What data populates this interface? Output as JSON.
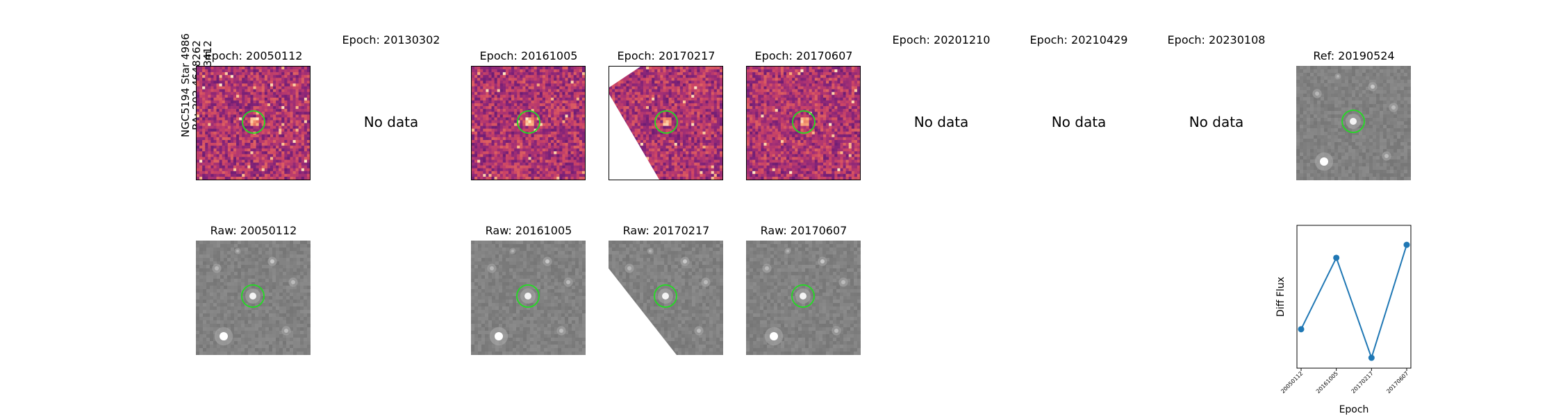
{
  "star_label": {
    "line1": "NGC5194 Star 4986",
    "line2": "RA: 202.4648262",
    "line3": "Dec: 47.1613412"
  },
  "colors": {
    "marker": "#22dd22",
    "series": "#1f77b4"
  },
  "no_data_text": "No data",
  "top_row": [
    {
      "title": "Epoch: 20050112",
      "has_data": true
    },
    {
      "title": "Epoch: 20130302",
      "has_data": false
    },
    {
      "title": "Epoch: 20161005",
      "has_data": true
    },
    {
      "title": "Epoch: 20170217",
      "has_data": true
    },
    {
      "title": "Epoch: 20170607",
      "has_data": true
    },
    {
      "title": "Epoch: 20201210",
      "has_data": false
    },
    {
      "title": "Epoch: 20210429",
      "has_data": false
    },
    {
      "title": "Epoch: 20230108",
      "has_data": false
    },
    {
      "title": "Ref: 20190524",
      "has_data": true
    }
  ],
  "bottom_row": [
    {
      "title": "Raw: 20050112"
    },
    {
      "title": "Raw: 20161005"
    },
    {
      "title": "Raw: 20170217"
    },
    {
      "title": "Raw: 20170607"
    }
  ],
  "chart_data": {
    "type": "line",
    "categories": [
      "20050112",
      "20161005",
      "20170217",
      "20170607"
    ],
    "values": [
      0.2,
      0.75,
      -0.02,
      0.85
    ],
    "xlabel": "Epoch",
    "ylabel": "Diff Flux",
    "ylim": [
      -0.1,
      1.0
    ],
    "y_ticks_labeled": false,
    "grid": false,
    "marker": "circle"
  }
}
